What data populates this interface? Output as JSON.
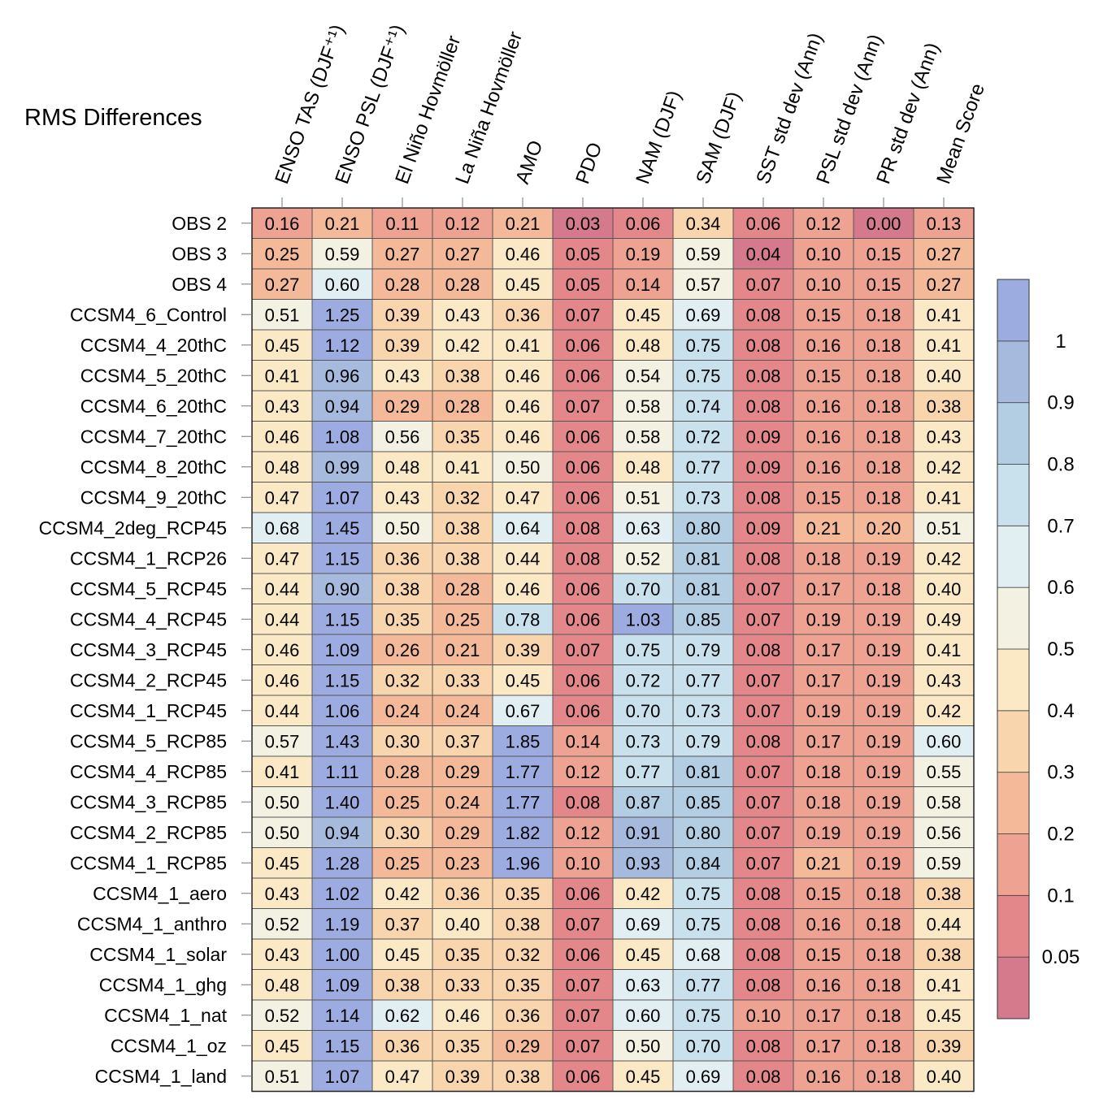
{
  "chart_data": {
    "type": "heatmap",
    "title": "RMS Differences",
    "columns": [
      "ENSO TAS (DJF⁺¹)",
      "ENSO PSL (DJF⁺¹)",
      "El Niño Hovmöller",
      "La Niña Hovmöller",
      "AMO",
      "PDO",
      "NAM (DJF)",
      "SAM (DJF)",
      "SST std dev (Ann)",
      "PSL std dev (Ann)",
      "PR std dev (Ann)",
      "Mean Score"
    ],
    "rows": [
      "OBS 2",
      "OBS 3",
      "OBS 4",
      "CCSM4_6_Control",
      "CCSM4_4_20thC",
      "CCSM4_5_20thC",
      "CCSM4_6_20thC",
      "CCSM4_7_20thC",
      "CCSM4_8_20thC",
      "CCSM4_9_20thC",
      "CCSM4_2deg_RCP45",
      "CCSM4_1_RCP26",
      "CCSM4_5_RCP45",
      "CCSM4_4_RCP45",
      "CCSM4_3_RCP45",
      "CCSM4_2_RCP45",
      "CCSM4_1_RCP45",
      "CCSM4_5_RCP85",
      "CCSM4_4_RCP85",
      "CCSM4_3_RCP85",
      "CCSM4_2_RCP85",
      "CCSM4_1_RCP85",
      "CCSM4_1_aero",
      "CCSM4_1_anthro",
      "CCSM4_1_solar",
      "CCSM4_1_ghg",
      "CCSM4_1_nat",
      "CCSM4_1_oz",
      "CCSM4_1_land"
    ],
    "values": [
      [
        "0.16",
        "0.21",
        "0.11",
        "0.12",
        "0.21",
        "0.03",
        "0.06",
        "0.34",
        "0.06",
        "0.12",
        "0.00",
        "0.13"
      ],
      [
        "0.25",
        "0.59",
        "0.27",
        "0.27",
        "0.46",
        "0.05",
        "0.19",
        "0.59",
        "0.04",
        "0.10",
        "0.15",
        "0.27"
      ],
      [
        "0.27",
        "0.60",
        "0.28",
        "0.28",
        "0.45",
        "0.05",
        "0.14",
        "0.57",
        "0.07",
        "0.10",
        "0.15",
        "0.27"
      ],
      [
        "0.51",
        "1.25",
        "0.39",
        "0.43",
        "0.36",
        "0.07",
        "0.45",
        "0.69",
        "0.08",
        "0.15",
        "0.18",
        "0.41"
      ],
      [
        "0.45",
        "1.12",
        "0.39",
        "0.42",
        "0.41",
        "0.06",
        "0.48",
        "0.75",
        "0.08",
        "0.16",
        "0.18",
        "0.41"
      ],
      [
        "0.41",
        "0.96",
        "0.43",
        "0.38",
        "0.46",
        "0.06",
        "0.54",
        "0.75",
        "0.08",
        "0.15",
        "0.18",
        "0.40"
      ],
      [
        "0.43",
        "0.94",
        "0.29",
        "0.28",
        "0.46",
        "0.07",
        "0.58",
        "0.74",
        "0.08",
        "0.16",
        "0.18",
        "0.38"
      ],
      [
        "0.46",
        "1.08",
        "0.56",
        "0.35",
        "0.46",
        "0.06",
        "0.58",
        "0.72",
        "0.09",
        "0.16",
        "0.18",
        "0.43"
      ],
      [
        "0.48",
        "0.99",
        "0.48",
        "0.41",
        "0.50",
        "0.06",
        "0.48",
        "0.77",
        "0.09",
        "0.16",
        "0.18",
        "0.42"
      ],
      [
        "0.47",
        "1.07",
        "0.43",
        "0.32",
        "0.47",
        "0.06",
        "0.51",
        "0.73",
        "0.08",
        "0.15",
        "0.18",
        "0.41"
      ],
      [
        "0.68",
        "1.45",
        "0.50",
        "0.38",
        "0.64",
        "0.08",
        "0.63",
        "0.80",
        "0.09",
        "0.21",
        "0.20",
        "0.51"
      ],
      [
        "0.47",
        "1.15",
        "0.36",
        "0.38",
        "0.44",
        "0.08",
        "0.52",
        "0.81",
        "0.08",
        "0.18",
        "0.19",
        "0.42"
      ],
      [
        "0.44",
        "0.90",
        "0.38",
        "0.28",
        "0.46",
        "0.06",
        "0.70",
        "0.81",
        "0.07",
        "0.17",
        "0.18",
        "0.40"
      ],
      [
        "0.44",
        "1.15",
        "0.35",
        "0.25",
        "0.78",
        "0.06",
        "1.03",
        "0.85",
        "0.07",
        "0.19",
        "0.19",
        "0.49"
      ],
      [
        "0.46",
        "1.09",
        "0.26",
        "0.21",
        "0.39",
        "0.07",
        "0.75",
        "0.79",
        "0.08",
        "0.17",
        "0.19",
        "0.41"
      ],
      [
        "0.46",
        "1.15",
        "0.32",
        "0.33",
        "0.45",
        "0.06",
        "0.72",
        "0.77",
        "0.07",
        "0.17",
        "0.19",
        "0.43"
      ],
      [
        "0.44",
        "1.06",
        "0.24",
        "0.24",
        "0.67",
        "0.06",
        "0.70",
        "0.73",
        "0.07",
        "0.19",
        "0.19",
        "0.42"
      ],
      [
        "0.57",
        "1.43",
        "0.30",
        "0.37",
        "1.85",
        "0.14",
        "0.73",
        "0.79",
        "0.08",
        "0.17",
        "0.19",
        "0.60"
      ],
      [
        "0.41",
        "1.11",
        "0.28",
        "0.29",
        "1.77",
        "0.12",
        "0.77",
        "0.81",
        "0.07",
        "0.18",
        "0.19",
        "0.55"
      ],
      [
        "0.50",
        "1.40",
        "0.25",
        "0.24",
        "1.77",
        "0.08",
        "0.87",
        "0.85",
        "0.07",
        "0.18",
        "0.19",
        "0.58"
      ],
      [
        "0.50",
        "0.94",
        "0.30",
        "0.29",
        "1.82",
        "0.12",
        "0.91",
        "0.80",
        "0.07",
        "0.19",
        "0.19",
        "0.56"
      ],
      [
        "0.45",
        "1.28",
        "0.25",
        "0.23",
        "1.96",
        "0.10",
        "0.93",
        "0.84",
        "0.07",
        "0.21",
        "0.19",
        "0.59"
      ],
      [
        "0.43",
        "1.02",
        "0.42",
        "0.36",
        "0.35",
        "0.06",
        "0.42",
        "0.75",
        "0.08",
        "0.15",
        "0.18",
        "0.38"
      ],
      [
        "0.52",
        "1.19",
        "0.37",
        "0.40",
        "0.38",
        "0.07",
        "0.69",
        "0.75",
        "0.08",
        "0.16",
        "0.18",
        "0.44"
      ],
      [
        "0.43",
        "1.00",
        "0.45",
        "0.35",
        "0.32",
        "0.06",
        "0.45",
        "0.68",
        "0.08",
        "0.15",
        "0.18",
        "0.38"
      ],
      [
        "0.48",
        "1.09",
        "0.38",
        "0.33",
        "0.35",
        "0.07",
        "0.63",
        "0.77",
        "0.08",
        "0.16",
        "0.18",
        "0.41"
      ],
      [
        "0.52",
        "1.14",
        "0.62",
        "0.46",
        "0.36",
        "0.07",
        "0.60",
        "0.75",
        "0.10",
        "0.17",
        "0.18",
        "0.45"
      ],
      [
        "0.45",
        "1.15",
        "0.36",
        "0.35",
        "0.29",
        "0.07",
        "0.50",
        "0.70",
        "0.08",
        "0.17",
        "0.18",
        "0.39"
      ],
      [
        "0.51",
        "1.07",
        "0.47",
        "0.39",
        "0.38",
        "0.06",
        "0.45",
        "0.69",
        "0.08",
        "0.16",
        "0.18",
        "0.40"
      ]
    ],
    "colorbar": {
      "thresholds": [
        0.05,
        0.1,
        0.2,
        0.3,
        0.4,
        0.5,
        0.6,
        0.7,
        0.8,
        0.9,
        1
      ],
      "tick_labels": [
        "0.05",
        "0.1",
        "0.2",
        "0.3",
        "0.4",
        "0.5",
        "0.6",
        "0.7",
        "0.8",
        "0.9",
        "1"
      ],
      "colors": [
        "#d47a8c",
        "#e3878a",
        "#eea291",
        "#f3b999",
        "#f9d5ae",
        "#fbe9c6",
        "#f3f1e2",
        "#e2eff2",
        "#c9e1ed",
        "#b3cde3",
        "#a6badd",
        "#9dace0"
      ]
    }
  }
}
